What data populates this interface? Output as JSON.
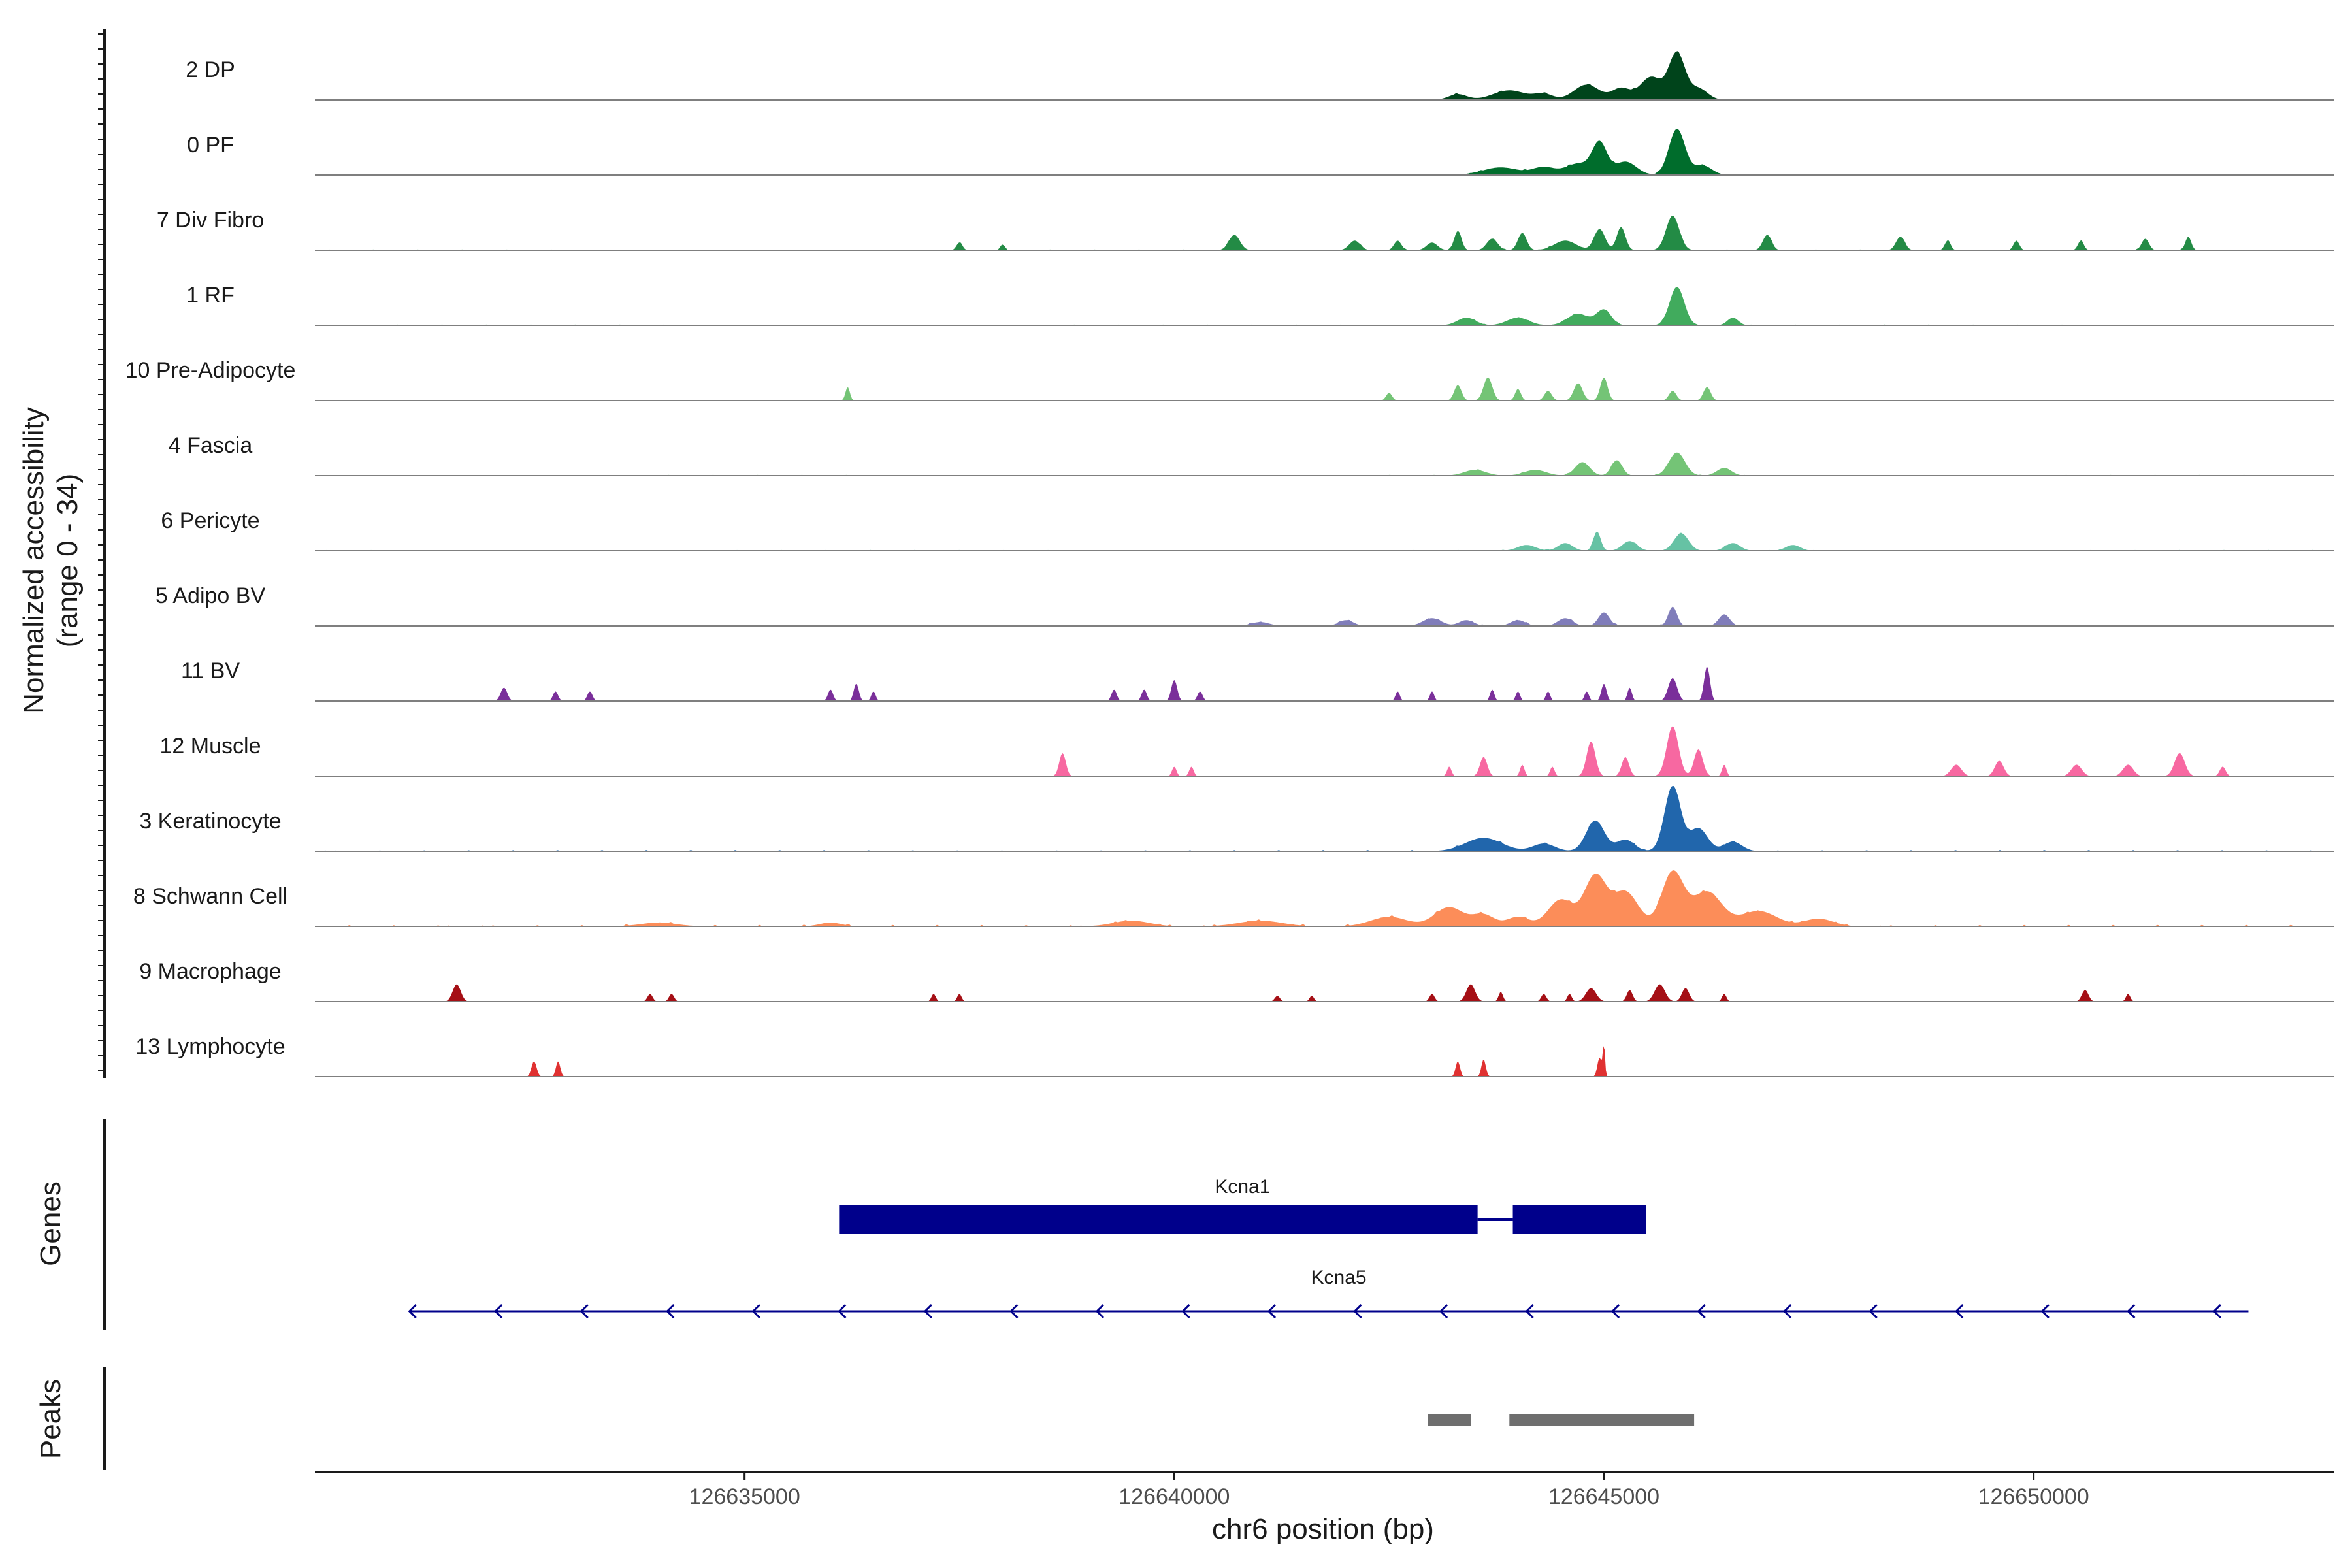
{
  "chart_data": {
    "type": "area",
    "title": "",
    "chromosome": "chr6",
    "xlabel": "chr6 position (bp)",
    "ylabel_line1": "Normalized accessibility",
    "ylabel_line2": "(range 0 - 34)",
    "y_range": [
      0,
      34
    ],
    "xlim": [
      126630000,
      126653500
    ],
    "x_ticks": [
      126635000,
      126640000,
      126645000,
      126650000
    ],
    "x_tick_labels": [
      "126635000",
      "126640000",
      "126645000",
      "126650000"
    ],
    "panels": {
      "genes": "Genes",
      "peaks": "Peaks"
    },
    "tracks": [
      {
        "name": "2 DP",
        "color": "#00441b",
        "noise": 0.25,
        "peaks": [
          [
            126643900,
            450,
            5
          ],
          [
            126644300,
            250,
            3
          ],
          [
            126644800,
            350,
            8
          ],
          [
            126645200,
            250,
            6
          ],
          [
            126645550,
            300,
            12
          ],
          [
            126645850,
            220,
            24
          ],
          [
            126646100,
            250,
            6
          ],
          [
            126643300,
            250,
            3
          ]
        ]
      },
      {
        "name": "0 PF",
        "color": "#006d2c",
        "noise": 0.25,
        "peaks": [
          [
            126643800,
            500,
            4
          ],
          [
            126644300,
            300,
            4
          ],
          [
            126644700,
            350,
            6
          ],
          [
            126644950,
            200,
            16
          ],
          [
            126645250,
            300,
            7
          ],
          [
            126645850,
            220,
            24
          ],
          [
            126646150,
            250,
            5
          ]
        ]
      },
      {
        "name": "7 Div Fibro",
        "color": "#238b45",
        "noise": 0.2,
        "peaks": [
          [
            126637500,
            80,
            4
          ],
          [
            126638000,
            60,
            3
          ],
          [
            126640700,
            150,
            8
          ],
          [
            126642100,
            150,
            5
          ],
          [
            126642600,
            100,
            5
          ],
          [
            126643000,
            150,
            4
          ],
          [
            126643300,
            100,
            10
          ],
          [
            126643700,
            150,
            6
          ],
          [
            126644050,
            120,
            9
          ],
          [
            126644550,
            300,
            5
          ],
          [
            126644950,
            150,
            11
          ],
          [
            126645200,
            120,
            12
          ],
          [
            126645800,
            180,
            18
          ],
          [
            126646900,
            120,
            8
          ],
          [
            126648450,
            120,
            7
          ],
          [
            126649000,
            80,
            5
          ],
          [
            126649800,
            80,
            5
          ],
          [
            126650550,
            80,
            5
          ],
          [
            126651300,
            100,
            6
          ],
          [
            126651800,
            80,
            7
          ]
        ]
      },
      {
        "name": "1 RF",
        "color": "#41ab5d",
        "noise": 0.2,
        "peaks": [
          [
            126643400,
            250,
            4
          ],
          [
            126644000,
            300,
            4
          ],
          [
            126644700,
            300,
            6
          ],
          [
            126645000,
            200,
            8
          ],
          [
            126645850,
            200,
            20
          ],
          [
            126646500,
            150,
            4
          ]
        ]
      },
      {
        "name": "10 Pre-Adipocyte",
        "color": "#74c476",
        "noise": 0.0,
        "peaks": [
          [
            126636200,
            60,
            7
          ],
          [
            126642500,
            80,
            4
          ],
          [
            126643300,
            100,
            8
          ],
          [
            126643650,
            120,
            12
          ],
          [
            126644000,
            80,
            6
          ],
          [
            126644350,
            100,
            5
          ],
          [
            126644700,
            120,
            9
          ],
          [
            126645000,
            100,
            12
          ],
          [
            126645800,
            100,
            5
          ],
          [
            126646200,
            100,
            7
          ]
        ]
      },
      {
        "name": "4 Fascia",
        "color": "#74c476",
        "noise": 0.2,
        "peaks": [
          [
            126643500,
            300,
            3
          ],
          [
            126644200,
            300,
            3
          ],
          [
            126644750,
            200,
            7
          ],
          [
            126645150,
            150,
            8
          ],
          [
            126645850,
            220,
            12
          ],
          [
            126646400,
            200,
            4
          ]
        ]
      },
      {
        "name": "6 Pericyte",
        "color": "#66c2a4",
        "noise": 0.2,
        "peaks": [
          [
            126644100,
            250,
            3
          ],
          [
            126644550,
            200,
            4
          ],
          [
            126644920,
            100,
            10
          ],
          [
            126645300,
            200,
            5
          ],
          [
            126645900,
            200,
            9
          ],
          [
            126646500,
            200,
            4
          ],
          [
            126647200,
            200,
            3
          ]
        ]
      },
      {
        "name": "5 Adipo BV",
        "color": "#807dba",
        "noise": 0.3,
        "peaks": [
          [
            126642000,
            200,
            3
          ],
          [
            126643000,
            250,
            4
          ],
          [
            126643400,
            200,
            3
          ],
          [
            126644000,
            200,
            3
          ],
          [
            126644550,
            200,
            4
          ],
          [
            126645000,
            150,
            7
          ],
          [
            126645800,
            120,
            10
          ],
          [
            126646400,
            150,
            6
          ],
          [
            126641000,
            250,
            2
          ]
        ]
      },
      {
        "name": "11 BV",
        "color": "#7a2f9a",
        "noise": 0.0,
        "peaks": [
          [
            126632200,
            90,
            7
          ],
          [
            126632800,
            70,
            5
          ],
          [
            126633200,
            70,
            5
          ],
          [
            126636000,
            70,
            6
          ],
          [
            126636300,
            70,
            9
          ],
          [
            126636500,
            60,
            5
          ],
          [
            126639300,
            70,
            6
          ],
          [
            126639650,
            70,
            6
          ],
          [
            126640000,
            80,
            11
          ],
          [
            126640300,
            70,
            5
          ],
          [
            126642600,
            60,
            5
          ],
          [
            126643000,
            60,
            5
          ],
          [
            126643700,
            60,
            6
          ],
          [
            126644000,
            60,
            5
          ],
          [
            126644350,
            60,
            5
          ],
          [
            126644800,
            60,
            5
          ],
          [
            126645000,
            70,
            9
          ],
          [
            126645300,
            60,
            7
          ],
          [
            126645800,
            120,
            12
          ],
          [
            126646200,
            80,
            18
          ]
        ]
      },
      {
        "name": "12 Muscle",
        "color": "#f768a1",
        "noise": 0.0,
        "peaks": [
          [
            126638700,
            90,
            12
          ],
          [
            126640000,
            60,
            5
          ],
          [
            126640200,
            60,
            5
          ],
          [
            126643200,
            60,
            5
          ],
          [
            126643600,
            100,
            10
          ],
          [
            126644050,
            60,
            6
          ],
          [
            126644400,
            60,
            5
          ],
          [
            126644850,
            120,
            18
          ],
          [
            126645250,
            100,
            10
          ],
          [
            126645800,
            160,
            26
          ],
          [
            126646100,
            120,
            14
          ],
          [
            126646400,
            60,
            6
          ],
          [
            126649100,
            140,
            6
          ],
          [
            126649600,
            120,
            8
          ],
          [
            126650500,
            140,
            6
          ],
          [
            126651100,
            140,
            6
          ],
          [
            126651700,
            140,
            12
          ],
          [
            126652200,
            80,
            5
          ]
        ]
      },
      {
        "name": "3 Keratinocyte",
        "color": "#2166ac",
        "noise": 0.3,
        "peaks": [
          [
            126643600,
            500,
            7
          ],
          [
            126644300,
            300,
            4
          ],
          [
            126644900,
            250,
            16
          ],
          [
            126645250,
            250,
            6
          ],
          [
            126645800,
            220,
            34
          ],
          [
            126646100,
            250,
            12
          ],
          [
            126646500,
            250,
            5
          ]
        ]
      },
      {
        "name": "8 Schwann Cell",
        "color": "#fc8d59",
        "noise": 0.4,
        "peaks": [
          [
            126642500,
            500,
            5
          ],
          [
            126643200,
            400,
            10
          ],
          [
            126643600,
            300,
            6
          ],
          [
            126644000,
            300,
            5
          ],
          [
            126644500,
            350,
            14
          ],
          [
            126644900,
            300,
            26
          ],
          [
            126645250,
            350,
            18
          ],
          [
            126645800,
            300,
            28
          ],
          [
            126646200,
            400,
            18
          ],
          [
            126646800,
            500,
            8
          ],
          [
            126647500,
            400,
            4
          ],
          [
            126641000,
            600,
            3
          ],
          [
            126639500,
            500,
            3
          ],
          [
            126634000,
            500,
            2
          ],
          [
            126636000,
            300,
            2
          ]
        ]
      },
      {
        "name": "9 Macrophage",
        "color": "#a50f15",
        "noise": 0.0,
        "peaks": [
          [
            126631650,
            110,
            9
          ],
          [
            126633900,
            70,
            4
          ],
          [
            126634150,
            70,
            4
          ],
          [
            126637200,
            60,
            4
          ],
          [
            126637500,
            60,
            4
          ],
          [
            126641200,
            70,
            3
          ],
          [
            126641600,
            60,
            3
          ],
          [
            126643000,
            70,
            4
          ],
          [
            126643450,
            120,
            9
          ],
          [
            126643800,
            60,
            5
          ],
          [
            126644300,
            70,
            4
          ],
          [
            126644600,
            60,
            4
          ],
          [
            126644850,
            140,
            7
          ],
          [
            126645300,
            80,
            6
          ],
          [
            126645650,
            140,
            9
          ],
          [
            126645950,
            100,
            7
          ],
          [
            126646400,
            60,
            4
          ],
          [
            126650600,
            90,
            6
          ],
          [
            126651100,
            60,
            4
          ]
        ]
      },
      {
        "name": "13 Lymphocyte",
        "color": "#e03131",
        "noise": 0.0,
        "peaks": [
          [
            126632550,
            70,
            8
          ],
          [
            126632830,
            60,
            8
          ],
          [
            126643300,
            60,
            8
          ],
          [
            126643600,
            60,
            9
          ],
          [
            126644950,
            60,
            10
          ],
          [
            126645000,
            30,
            16
          ]
        ]
      }
    ],
    "genes": [
      {
        "name": "Kcna1",
        "color": "#00008b",
        "exons": [
          [
            126636100,
            126643530
          ],
          [
            126643940,
            126645490
          ]
        ]
      },
      {
        "name": "Kcna5",
        "color": "#00008b",
        "start": 126631100,
        "end": 126652500,
        "strand": "-"
      }
    ],
    "peak_regions": [
      [
        126642950,
        126643450
      ],
      [
        126643900,
        126646050
      ]
    ],
    "peak_color": "#6e6e6e"
  }
}
